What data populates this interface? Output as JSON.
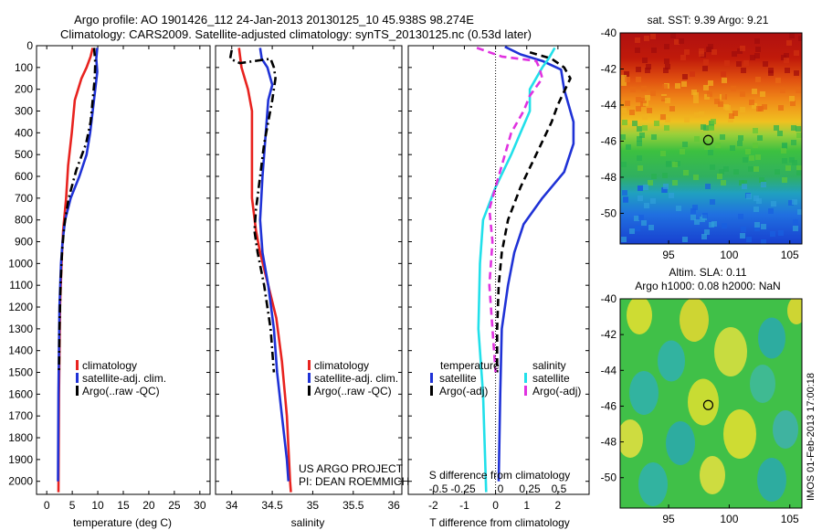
{
  "title": {
    "line1": "Argo profile: AO 1901426_112 24-Jan-2013 20130125_10 45.938S 98.274E",
    "line2": "Climatology: CARS2009. Satellite-adjusted climatology: synTS_20130125.nc (0.53d later)"
  },
  "watermark": "IMOS 01-Feb-2013 17:00:18",
  "project": {
    "line1": "US ARGO PROJECT",
    "line2": "PI: DEAN ROEMMICH"
  },
  "colors": {
    "red": "#e8231f",
    "blue": "#1f32d6",
    "cyan": "#21e0ea",
    "magenta": "#e032e0",
    "black": "#000000"
  },
  "chart_data": [
    {
      "type": "line",
      "name": "temperature",
      "xlabel": "temperature (deg C)",
      "xlim": [
        -2,
        32
      ],
      "ylim": [
        0,
        2060
      ],
      "xticks": [
        "0",
        "5",
        "10",
        "15",
        "20",
        "25",
        "30"
      ],
      "yticks": [
        "0",
        "100",
        "200",
        "300",
        "400",
        "500",
        "600",
        "700",
        "800",
        "900",
        "1000",
        "1100",
        "1200",
        "1300",
        "1400",
        "1500",
        "1600",
        "1700",
        "1800",
        "1900",
        "2000"
      ],
      "legend": [
        "climatology",
        "satellite-adj. clim.",
        "Argo(..raw -QC)"
      ],
      "series": [
        {
          "name": "climatology",
          "color": "red",
          "dash": "solid",
          "points": [
            [
              9.0,
              10
            ],
            [
              8.6,
              50
            ],
            [
              7.8,
              100
            ],
            [
              6.8,
              150
            ],
            [
              5.5,
              250
            ],
            [
              4.9,
              400
            ],
            [
              4.2,
              550
            ],
            [
              3.8,
              700
            ],
            [
              3.2,
              850
            ],
            [
              2.9,
              1000
            ],
            [
              2.6,
              1200
            ],
            [
              2.4,
              1600
            ],
            [
              2.3,
              2050
            ]
          ]
        },
        {
          "name": "satellite-adj. clim.",
          "color": "blue",
          "dash": "solid",
          "points": [
            [
              9.9,
              10
            ],
            [
              9.7,
              60
            ],
            [
              9.9,
              120
            ],
            [
              9.5,
              200
            ],
            [
              9.0,
              300
            ],
            [
              8.5,
              400
            ],
            [
              7.8,
              500
            ],
            [
              6.4,
              600
            ],
            [
              4.7,
              700
            ],
            [
              3.6,
              800
            ],
            [
              3.1,
              900
            ],
            [
              2.8,
              1000
            ],
            [
              2.5,
              1200
            ],
            [
              2.3,
              1600
            ],
            [
              2.2,
              2000
            ]
          ]
        },
        {
          "name": "Argo(..raw -QC)",
          "color": "black",
          "dash": "dashdot",
          "points": [
            [
              9.3,
              10
            ],
            [
              9.5,
              80
            ],
            [
              9.4,
              150
            ],
            [
              9.0,
              250
            ],
            [
              8.6,
              350
            ],
            [
              7.7,
              450
            ],
            [
              5.8,
              570
            ],
            [
              4.3,
              700
            ],
            [
              3.4,
              830
            ],
            [
              3.0,
              950
            ],
            [
              2.7,
              1100
            ],
            [
              2.5,
              1300
            ],
            [
              2.4,
              1500
            ]
          ]
        }
      ]
    },
    {
      "type": "line",
      "name": "salinity",
      "xlabel": "salinity",
      "xlim": [
        33.8,
        36.1
      ],
      "ylim": [
        0,
        2060
      ],
      "xticks": [
        "34",
        "34.5",
        "35",
        "35.5",
        "36"
      ],
      "legend": [
        "climatology",
        "satellite-adj. clim.",
        "Argo(..raw -QC)"
      ],
      "series": [
        {
          "name": "climatology",
          "color": "red",
          "dash": "solid",
          "points": [
            [
              34.09,
              10
            ],
            [
              34.12,
              100
            ],
            [
              34.2,
              200
            ],
            [
              34.25,
              300
            ],
            [
              34.25,
              500
            ],
            [
              34.25,
              700
            ],
            [
              34.3,
              850
            ],
            [
              34.35,
              950
            ],
            [
              34.45,
              1100
            ],
            [
              34.55,
              1250
            ],
            [
              34.62,
              1450
            ],
            [
              34.68,
              1700
            ],
            [
              34.72,
              2000
            ],
            [
              34.73,
              2050
            ]
          ]
        },
        {
          "name": "satellite-adj. clim.",
          "color": "blue",
          "dash": "solid",
          "points": [
            [
              34.35,
              10
            ],
            [
              34.37,
              60
            ],
            [
              34.44,
              100
            ],
            [
              34.5,
              180
            ],
            [
              34.45,
              250
            ],
            [
              34.42,
              400
            ],
            [
              34.38,
              600
            ],
            [
              34.35,
              800
            ],
            [
              34.38,
              950
            ],
            [
              34.45,
              1100
            ],
            [
              34.52,
              1300
            ],
            [
              34.56,
              1500
            ],
            [
              34.62,
              1700
            ],
            [
              34.68,
              1900
            ],
            [
              34.7,
              2000
            ]
          ]
        },
        {
          "name": "Argo(..raw -QC)",
          "color": "black",
          "dash": "dashdot",
          "points": [
            [
              34.0,
              20
            ],
            [
              33.98,
              60
            ],
            [
              34.1,
              80
            ],
            [
              34.48,
              60
            ],
            [
              34.52,
              100
            ],
            [
              34.54,
              150
            ],
            [
              34.5,
              250
            ],
            [
              34.45,
              350
            ],
            [
              34.4,
              450
            ],
            [
              34.35,
              600
            ],
            [
              34.3,
              750
            ],
            [
              34.28,
              850
            ],
            [
              34.32,
              950
            ],
            [
              34.4,
              1100
            ],
            [
              34.48,
              1300
            ],
            [
              34.52,
              1500
            ]
          ]
        }
      ]
    },
    {
      "type": "line",
      "name": "difference",
      "xlabel": "T difference from climatology",
      "top_xlabel": "S difference from climatology",
      "xlim": [
        -2.8,
        3.0
      ],
      "ylim": [
        0,
        2060
      ],
      "xticks": [
        "-2",
        "-1",
        "0",
        "1",
        "2"
      ],
      "top_xticks": [
        "-0.5",
        "-0.25",
        "0",
        "0.25",
        "0.5"
      ],
      "legend_groups": [
        {
          "heading": "temperature",
          "items": [
            "satellite",
            "Argo(-adj)"
          ]
        },
        {
          "heading": "salinity",
          "items": [
            "satellite",
            "Argo(-adj)"
          ]
        }
      ],
      "series": [
        {
          "name": "temperature satellite",
          "color": "blue",
          "dash": "solid",
          "points": [
            [
              0.3,
              5
            ],
            [
              0.8,
              40
            ],
            [
              1.5,
              70
            ],
            [
              2.1,
              110
            ],
            [
              2.2,
              200
            ],
            [
              2.3,
              250
            ],
            [
              2.5,
              350
            ],
            [
              2.5,
              450
            ],
            [
              2.2,
              580
            ],
            [
              1.5,
              700
            ],
            [
              0.9,
              820
            ],
            [
              0.6,
              950
            ],
            [
              0.4,
              1100
            ],
            [
              0.2,
              1300
            ],
            [
              0.15,
              1600
            ],
            [
              0.1,
              2000
            ]
          ]
        },
        {
          "name": "temperature Argo(-adj)",
          "color": "black",
          "dash": "dashed",
          "points": [
            [
              1.1,
              30
            ],
            [
              1.8,
              60
            ],
            [
              2.2,
              100
            ],
            [
              2.4,
              150
            ],
            [
              2.0,
              270
            ],
            [
              1.8,
              350
            ],
            [
              1.3,
              500
            ],
            [
              0.8,
              650
            ],
            [
              0.4,
              800
            ],
            [
              0.2,
              950
            ],
            [
              0.1,
              1100
            ],
            [
              0.05,
              1300
            ],
            [
              0.05,
              1500
            ]
          ]
        },
        {
          "name": "salinity satellite",
          "color": "cyan",
          "dash": "solid",
          "points": [
            [
              1.9,
              10
            ],
            [
              1.7,
              60
            ],
            [
              1.5,
              100
            ],
            [
              1.1,
              200
            ],
            [
              1.1,
              300
            ],
            [
              0.8,
              400
            ],
            [
              0.5,
              500
            ],
            [
              0.0,
              650
            ],
            [
              -0.4,
              800
            ],
            [
              -0.5,
              1000
            ],
            [
              -0.55,
              1300
            ],
            [
              -0.4,
              1600
            ],
            [
              -0.3,
              2050
            ]
          ]
        },
        {
          "name": "salinity Argo(-adj)",
          "color": "magenta",
          "dash": "dashed",
          "points": [
            [
              -0.6,
              10
            ],
            [
              0.2,
              50
            ],
            [
              1.3,
              70
            ],
            [
              1.4,
              100
            ],
            [
              1.5,
              150
            ],
            [
              1.1,
              230
            ],
            [
              0.9,
              300
            ],
            [
              0.5,
              400
            ],
            [
              0.1,
              600
            ],
            [
              -0.2,
              750
            ],
            [
              -0.1,
              900
            ],
            [
              -0.2,
              1100
            ],
            [
              -0.1,
              1300
            ],
            [
              0.0,
              1500
            ]
          ]
        }
      ]
    },
    {
      "type": "heatmap",
      "name": "sst-map",
      "title": "sat. SST: 9.39 Argo: 9.21",
      "xlim": [
        91,
        106
      ],
      "ylim": [
        -51.7,
        -40
      ],
      "xticks": [
        "95",
        "100",
        "105"
      ],
      "yticks": [
        "-40",
        "-42",
        "-44",
        "-46",
        "-48",
        "-50"
      ],
      "marker": {
        "lon": 98.27,
        "lat": -45.94
      }
    },
    {
      "type": "heatmap",
      "name": "sla-map",
      "title": "Altim. SLA: 0.11",
      "subtitle": "Argo h1000: 0.08 h2000: NaN",
      "xlim": [
        91,
        106
      ],
      "ylim": [
        -51.7,
        -40
      ],
      "xticks": [
        "95",
        "100",
        "105"
      ],
      "yticks": [
        "-40",
        "-42",
        "-44",
        "-46",
        "-48",
        "-50"
      ],
      "marker": {
        "lon": 98.27,
        "lat": -45.94
      }
    }
  ]
}
